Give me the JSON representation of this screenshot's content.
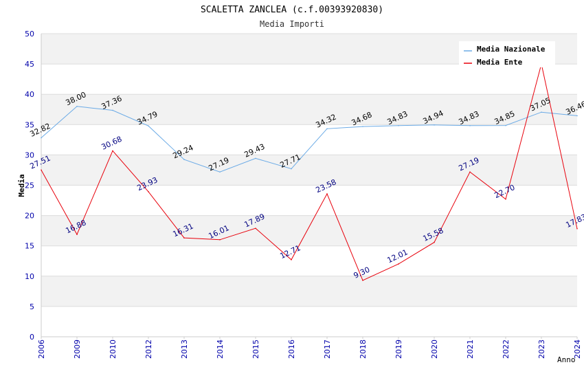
{
  "chart_data": {
    "type": "line",
    "title": "SCALETTA ZANCLEA (c.f.00393920830)",
    "subtitle": "Media Importi",
    "xlabel": "Anno",
    "ylabel": "Media",
    "ylim": [
      0,
      50
    ],
    "yticks": [
      "0",
      "5",
      "10",
      "15",
      "20",
      "25",
      "30",
      "35",
      "40",
      "45",
      "50"
    ],
    "grid": true,
    "legend_position": "top-right",
    "categories": [
      "2006",
      "2009",
      "2010",
      "2012",
      "2013",
      "2014",
      "2015",
      "2016",
      "2017",
      "2018",
      "2019",
      "2020",
      "2021",
      "2022",
      "2023",
      "2024"
    ],
    "series": [
      {
        "name": "Media Nazionale",
        "color": "#6aaae6",
        "label_color": "#000000",
        "values": [
          32.82,
          38.0,
          37.36,
          34.79,
          29.24,
          27.19,
          29.43,
          27.71,
          34.32,
          34.68,
          34.83,
          34.94,
          34.83,
          34.85,
          37.05,
          36.46
        ],
        "labels": [
          "32.82",
          "38.00",
          "37.36",
          "34.79",
          "29.24",
          "27.19",
          "29.43",
          "27.71",
          "34.32",
          "34.68",
          "34.83",
          "34.94",
          "34.83",
          "34.85",
          "37.05",
          "36.46"
        ]
      },
      {
        "name": "Media Ente",
        "color": "#e8000b",
        "label_color": "#000080",
        "values": [
          27.51,
          16.88,
          30.68,
          23.93,
          16.31,
          16.01,
          17.89,
          12.71,
          23.58,
          9.3,
          12.01,
          15.58,
          27.19,
          22.7,
          45.0,
          17.83
        ],
        "labels": [
          "27.51",
          "16.88",
          "30.68",
          "23.93",
          "16.31",
          "16.01",
          "17.89",
          "12.71",
          "23.58",
          "9.30",
          "12.01",
          "15.58",
          "27.19",
          "22.70",
          "",
          "17.83"
        ]
      }
    ]
  },
  "colors": {
    "band": "#f2f2f2",
    "axis_tick_text": "#0000aa",
    "title_text": "#000000",
    "subtitle_text": "#333333"
  }
}
